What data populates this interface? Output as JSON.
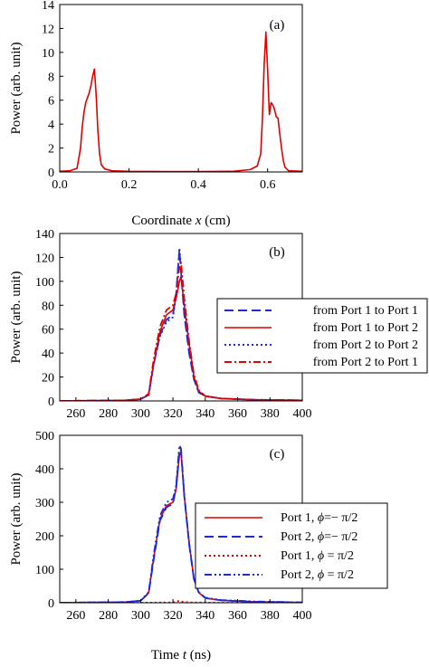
{
  "chart_data": [
    {
      "type": "line",
      "panel_label": "(a)",
      "xlabel": "Coordinate x (cm)",
      "ylabel": "Power (arb. unit)",
      "xlim": [
        0,
        0.7
      ],
      "ylim": [
        0,
        14
      ],
      "xticks": [
        "0.0",
        "0.2",
        "0.4",
        "0.6"
      ],
      "xtick_values": [
        0,
        0.2,
        0.4,
        0.6
      ],
      "yticks": [
        "0",
        "2",
        "4",
        "6",
        "8",
        "10",
        "12",
        "14"
      ],
      "ytick_values": [
        0,
        2,
        4,
        6,
        8,
        10,
        12,
        14
      ],
      "series": [
        {
          "color": "#e00000",
          "style": "solid",
          "x": [
            0,
            0.03,
            0.05,
            0.06,
            0.065,
            0.07,
            0.075,
            0.08,
            0.085,
            0.09,
            0.095,
            0.1,
            0.105,
            0.11,
            0.115,
            0.12,
            0.13,
            0.15,
            0.2,
            0.3,
            0.4,
            0.5,
            0.55,
            0.57,
            0.58,
            0.585,
            0.59,
            0.595,
            0.6,
            0.605,
            0.61,
            0.615,
            0.62,
            0.625,
            0.63,
            0.635,
            0.64,
            0.645,
            0.65,
            0.66,
            0.7
          ],
          "y": [
            0.05,
            0.1,
            0.3,
            2.0,
            3.8,
            5.0,
            5.8,
            6.2,
            6.6,
            7.2,
            8.0,
            8.6,
            6.5,
            3.5,
            1.5,
            0.6,
            0.25,
            0.1,
            0.05,
            0.03,
            0.03,
            0.05,
            0.2,
            0.5,
            1.5,
            4.5,
            9.0,
            11.7,
            8.5,
            4.8,
            5.8,
            5.6,
            5.2,
            4.6,
            4.5,
            3.2,
            2.0,
            1.0,
            0.4,
            0.1,
            0.05
          ]
        }
      ]
    },
    {
      "type": "line",
      "panel_label": "(b)",
      "xlabel": "",
      "ylabel": "Power (arb. unit)",
      "xlim": [
        250,
        400
      ],
      "ylim": [
        0,
        140
      ],
      "xticks": [
        "260",
        "280",
        "300",
        "320",
        "340",
        "360",
        "380",
        "400"
      ],
      "xtick_values": [
        260,
        280,
        300,
        320,
        340,
        360,
        380,
        400
      ],
      "yticks": [
        "0",
        "20",
        "40",
        "60",
        "80",
        "100",
        "120",
        "140"
      ],
      "ytick_values": [
        0,
        20,
        40,
        60,
        80,
        100,
        120,
        140
      ],
      "legend_position": "right",
      "series": [
        {
          "name": "from Port 1 to Port 1",
          "color": "#1f2ad6",
          "style": "dashed",
          "x": [
            250,
            290,
            300,
            305,
            308,
            312,
            316,
            320,
            322,
            324,
            325,
            327,
            330,
            333,
            336,
            340,
            350,
            370,
            400
          ],
          "y": [
            0,
            0.5,
            1.5,
            5,
            30,
            55,
            68,
            72,
            90,
            126,
            108,
            72,
            40,
            18,
            7,
            4,
            2,
            1,
            0.5
          ]
        },
        {
          "name": "from Port 1 to Port 2",
          "color": "#e00000",
          "style": "solid",
          "x": [
            250,
            290,
            300,
            305,
            308,
            312,
            316,
            320,
            322,
            324,
            325,
            327,
            330,
            333,
            336,
            340,
            350,
            370,
            400
          ],
          "y": [
            0,
            0.5,
            1.5,
            5,
            30,
            58,
            72,
            76,
            86,
            100,
            104,
            80,
            48,
            20,
            8,
            4,
            2,
            1,
            0.5
          ]
        },
        {
          "name": "from Port 2 to Port 2",
          "color": "#1f2ad6",
          "style": "dotted",
          "x": [
            250,
            290,
            300,
            305,
            308,
            312,
            316,
            320,
            322,
            324,
            325,
            327,
            330,
            333,
            336,
            340,
            350,
            370,
            400
          ],
          "y": [
            0,
            0.5,
            1.5,
            5,
            30,
            54,
            66,
            70,
            88,
            128,
            112,
            74,
            41,
            18,
            7,
            4,
            2,
            1,
            0.5
          ]
        },
        {
          "name": "from Port 2 to Port 1",
          "color": "#e00000",
          "style": "dashdot",
          "x": [
            250,
            290,
            300,
            305,
            308,
            312,
            316,
            320,
            322,
            324,
            325,
            327,
            330,
            333,
            336,
            340,
            350,
            370,
            400
          ],
          "y": [
            0,
            0.5,
            1.5,
            6,
            34,
            62,
            76,
            80,
            90,
            112,
            116,
            86,
            50,
            22,
            9,
            4,
            2,
            1,
            0.5
          ]
        }
      ]
    },
    {
      "type": "line",
      "panel_label": "(c)",
      "xlabel": "Time t (ns)",
      "ylabel": "Power (arb. unit)",
      "xlim": [
        250,
        400
      ],
      "ylim": [
        0,
        500
      ],
      "xticks": [
        "260",
        "280",
        "300",
        "320",
        "340",
        "360",
        "380",
        "400"
      ],
      "xtick_values": [
        260,
        280,
        300,
        320,
        340,
        360,
        380,
        400
      ],
      "yticks": [
        "0",
        "100",
        "200",
        "300",
        "400",
        "500"
      ],
      "ytick_values": [
        0,
        100,
        200,
        300,
        400,
        500
      ],
      "legend_position": "right",
      "series": [
        {
          "name": "Port 1, ",
          "phi": "=− π/2",
          "color": "#e00000",
          "style": "solid",
          "x": [
            250,
            290,
            300,
            305,
            308,
            312,
            316,
            320,
            322,
            324,
            325,
            327,
            330,
            333,
            336,
            340,
            350,
            370,
            400
          ],
          "y": [
            0,
            2,
            6,
            30,
            130,
            250,
            290,
            300,
            340,
            440,
            450,
            320,
            180,
            70,
            30,
            14,
            7,
            3,
            1
          ]
        },
        {
          "name": "Port 2, ",
          "phi": "=− π/2",
          "color": "#1f2ad6",
          "style": "dashed",
          "x": [
            250,
            290,
            300,
            305,
            308,
            312,
            316,
            320,
            322,
            324,
            325,
            327,
            330,
            333,
            336,
            340,
            350,
            370,
            400
          ],
          "y": [
            0,
            2,
            6,
            28,
            125,
            245,
            285,
            295,
            345,
            460,
            455,
            320,
            175,
            70,
            30,
            14,
            7,
            3,
            1
          ]
        },
        {
          "name": "Port 1, ",
          "phi": " = π/2",
          "color": "#e00000",
          "style": "dotted",
          "x": [
            250,
            300,
            320,
            322,
            324,
            326,
            330,
            350,
            400
          ],
          "y": [
            0,
            0,
            1,
            3,
            6,
            3,
            1,
            0,
            0
          ]
        },
        {
          "name": "Port 2, ",
          "phi": " = π/2",
          "color": "#1f2ad6",
          "style": "dashdotdot",
          "x": [
            250,
            290,
            300,
            305,
            308,
            312,
            316,
            320,
            322,
            324,
            325,
            327,
            330,
            333,
            336,
            340,
            350,
            370,
            400
          ],
          "y": [
            0,
            2,
            6,
            32,
            140,
            260,
            300,
            310,
            350,
            470,
            460,
            325,
            180,
            72,
            32,
            15,
            8,
            4,
            1
          ]
        }
      ]
    }
  ]
}
